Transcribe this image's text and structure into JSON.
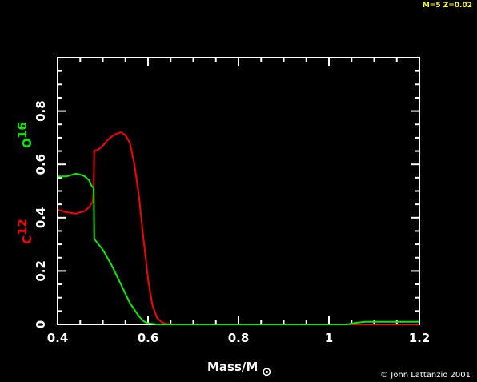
{
  "model_label": "M=5 Z=0.02",
  "credit": "© John Lattanzio 2001",
  "colors": {
    "background": "#000000",
    "axes": "#ffffff",
    "c12": "#ff0000",
    "o16": "#00ee00",
    "model": "#ffff00"
  },
  "chart_data": {
    "type": "line",
    "xlabel": {
      "base": "Mass/M",
      "subscript": "⊙"
    },
    "ylabels": [
      {
        "base": "C",
        "superscript": "12",
        "color": "#ff0000"
      },
      {
        "base": "O",
        "superscript": "16",
        "color": "#00ee00"
      }
    ],
    "xlim": [
      0.4,
      1.2
    ],
    "ylim": [
      0,
      1.0
    ],
    "xticks": [
      "0.4",
      "0.6",
      "0.8",
      "1",
      "1.2"
    ],
    "yticks": [
      "0",
      "0.2",
      "0.4",
      "0.6",
      "0.8"
    ],
    "series": [
      {
        "key": "c12",
        "color": "#ff0000",
        "x": [
          0.4,
          0.42,
          0.44,
          0.46,
          0.47,
          0.478,
          0.48,
          0.481,
          0.49,
          0.5,
          0.51,
          0.52,
          0.53,
          0.54,
          0.55,
          0.56,
          0.57,
          0.58,
          0.59,
          0.6,
          0.61,
          0.62,
          0.63,
          0.64,
          0.66,
          0.7,
          1.2
        ],
        "y": [
          0.43,
          0.42,
          0.415,
          0.425,
          0.44,
          0.46,
          0.52,
          0.65,
          0.655,
          0.67,
          0.69,
          0.705,
          0.715,
          0.72,
          0.71,
          0.68,
          0.6,
          0.48,
          0.32,
          0.17,
          0.07,
          0.025,
          0.008,
          0.002,
          0.0,
          0.0,
          0.0
        ]
      },
      {
        "key": "o16",
        "color": "#00ee00",
        "x": [
          0.4,
          0.42,
          0.44,
          0.45,
          0.46,
          0.47,
          0.475,
          0.48,
          0.481,
          0.5,
          0.52,
          0.54,
          0.56,
          0.58,
          0.59,
          0.6,
          0.62,
          0.66,
          1.04,
          1.06,
          1.08,
          1.2
        ],
        "y": [
          0.555,
          0.555,
          0.565,
          0.562,
          0.555,
          0.54,
          0.52,
          0.51,
          0.32,
          0.28,
          0.22,
          0.15,
          0.08,
          0.03,
          0.012,
          0.004,
          0.0,
          0.0,
          0.0,
          0.006,
          0.01,
          0.01
        ]
      }
    ]
  }
}
